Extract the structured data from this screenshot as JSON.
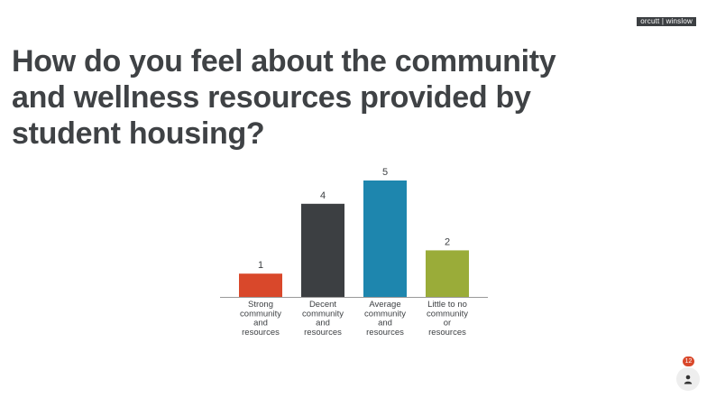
{
  "brand": {
    "logo_text": "orcutt | winslow"
  },
  "page": {
    "title": "How do you feel about the community and wellness resources provided by student housing?"
  },
  "participants": {
    "count": "12",
    "icon": "person-icon"
  },
  "chart_data": {
    "type": "bar",
    "categories": [
      [
        "Strong",
        "community",
        "and",
        "resources"
      ],
      [
        "Decent",
        "community",
        "and",
        "resources"
      ],
      [
        "Average",
        "community",
        "and",
        "resources"
      ],
      [
        "Little to no",
        "community",
        "or",
        "resources"
      ]
    ],
    "values": [
      1,
      4,
      5,
      2
    ],
    "colors": [
      "#d9482b",
      "#3c3f42",
      "#1e86ae",
      "#9aac39"
    ],
    "title": "",
    "xlabel": "",
    "ylabel": "",
    "ylim": [
      0,
      5
    ],
    "grid": false,
    "legend": "none",
    "data_labels": true
  }
}
